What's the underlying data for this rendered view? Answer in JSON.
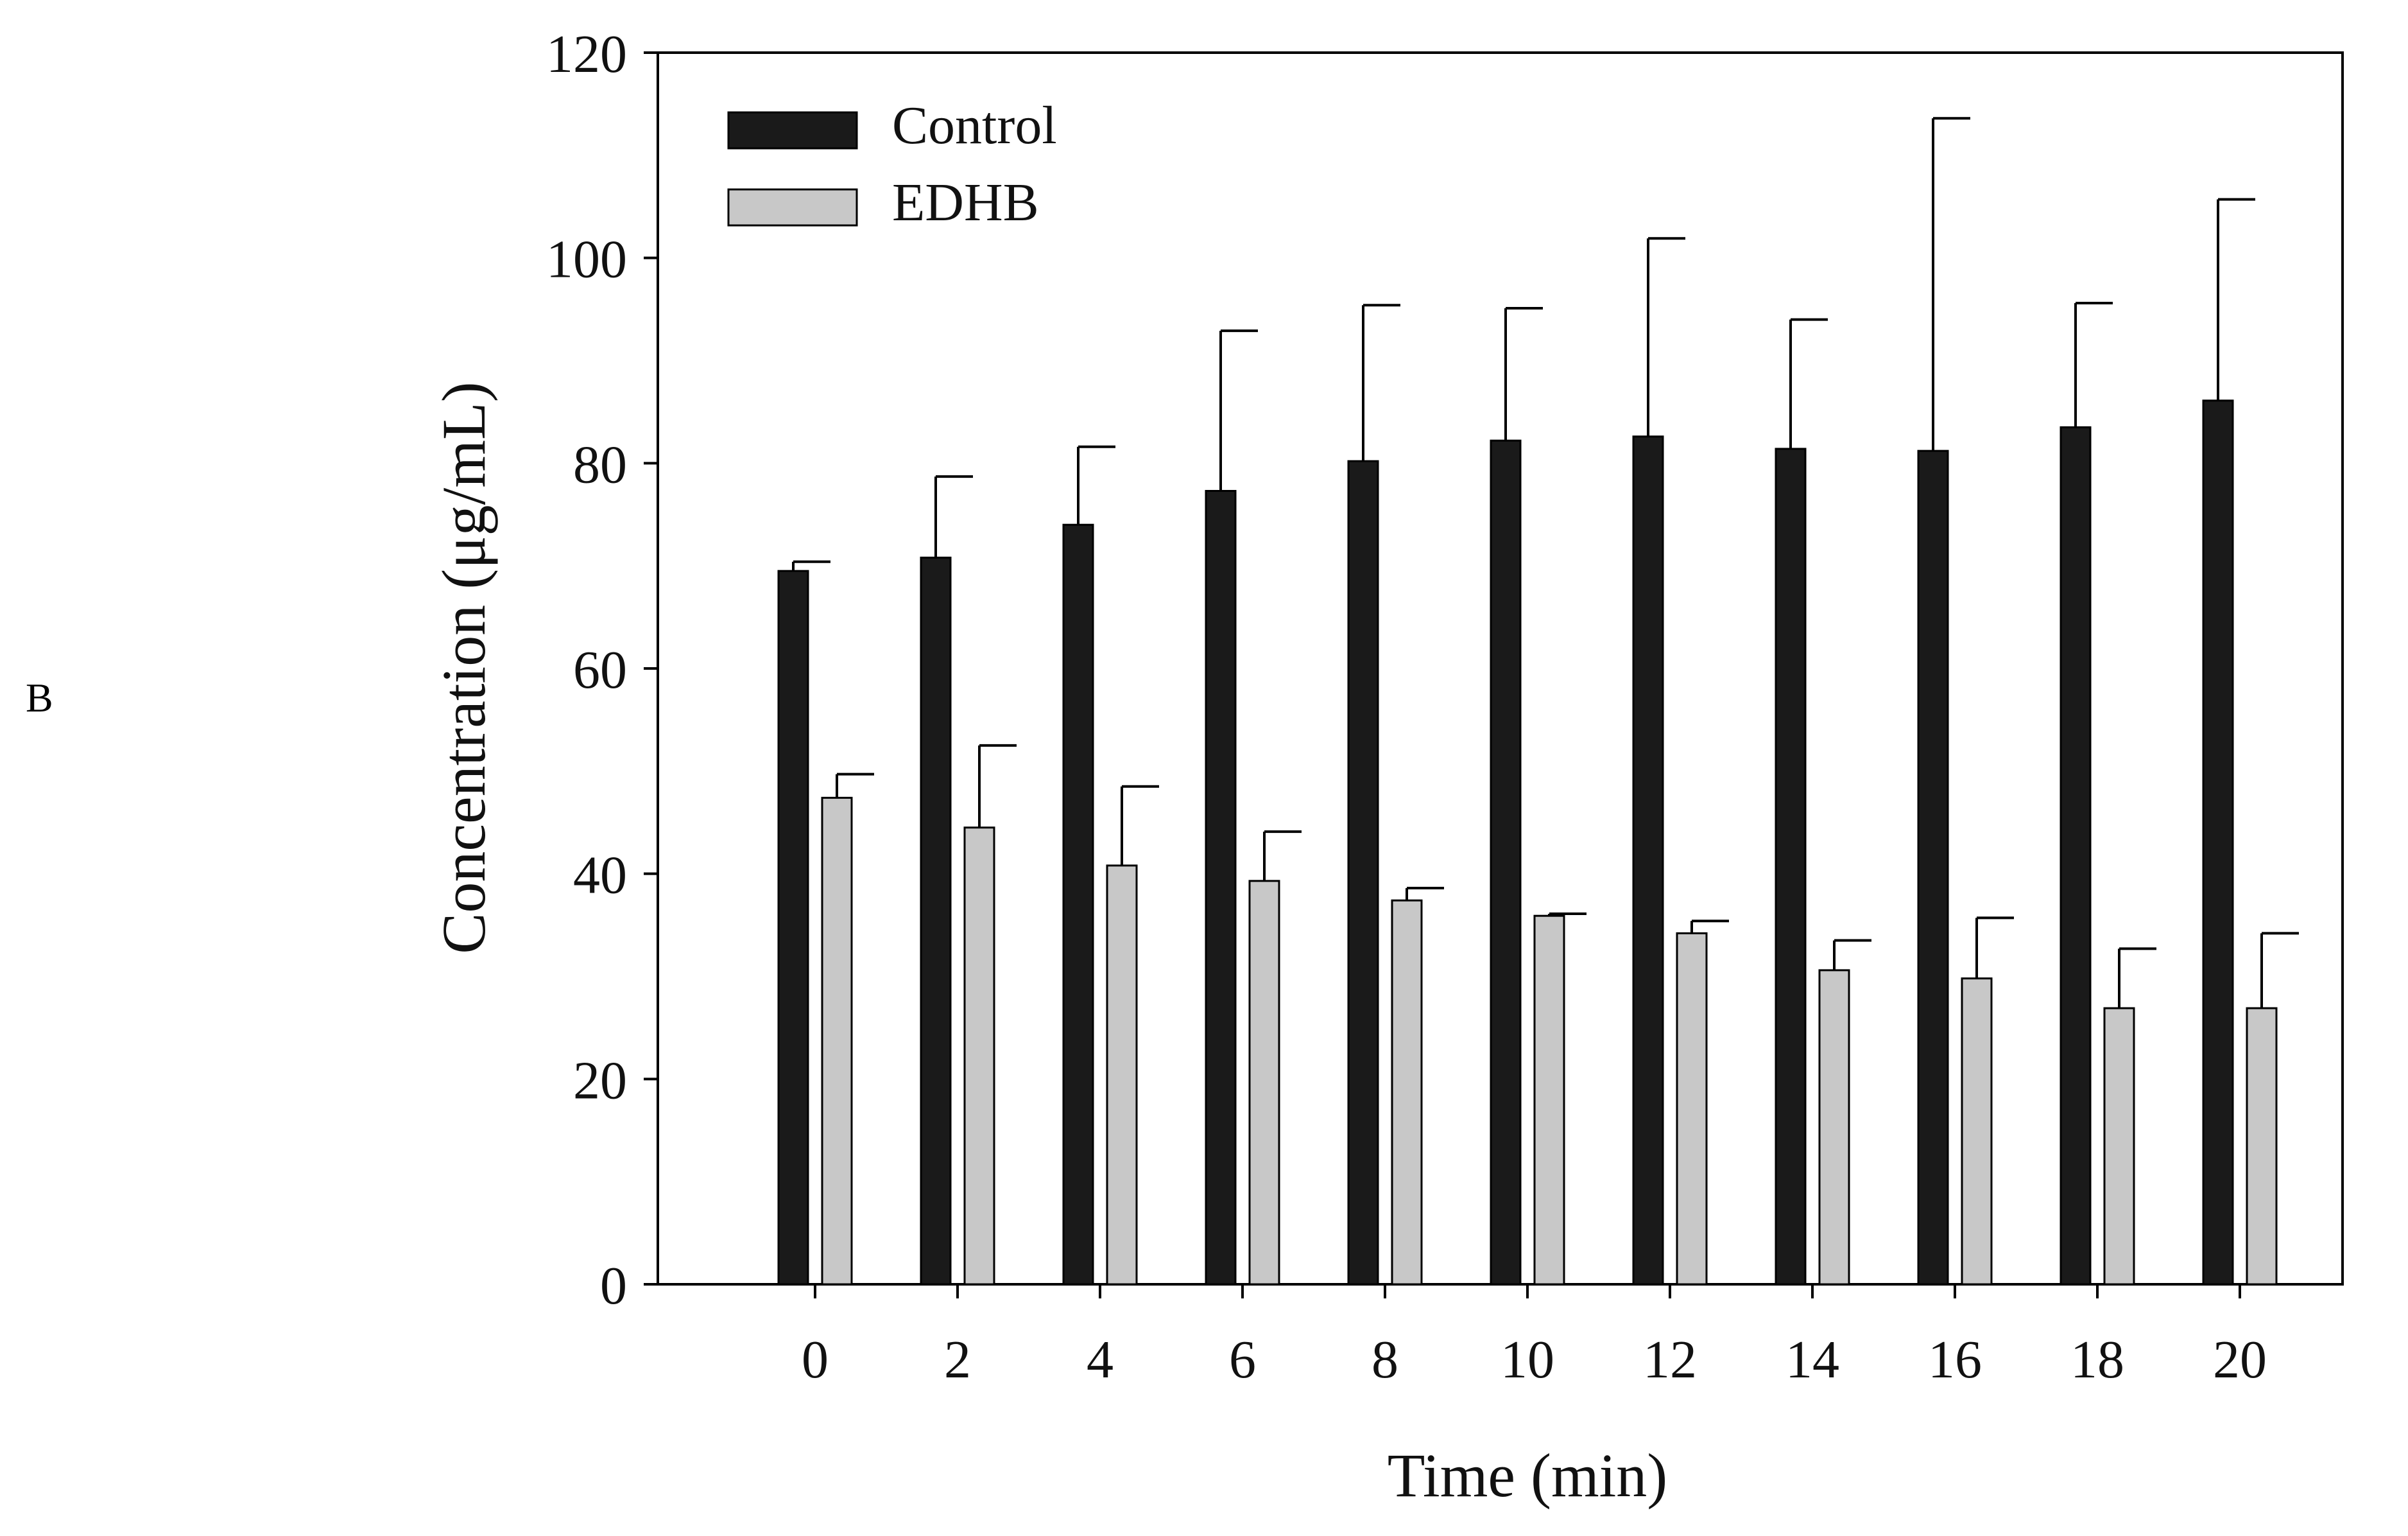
{
  "panel_label": "B",
  "chart_data": {
    "type": "bar",
    "title": "",
    "xlabel": "Time (min)",
    "ylabel": "Concentration (μg/mL)",
    "ylim": [
      0,
      120
    ],
    "yticks": [
      0,
      20,
      40,
      60,
      80,
      100,
      120
    ],
    "categories": [
      "0",
      "2",
      "4",
      "6",
      "8",
      "10",
      "12",
      "14",
      "16",
      "18",
      "20"
    ],
    "series": [
      {
        "name": "Control",
        "color": "#1a1a1a",
        "values": [
          69.5,
          70.8,
          74.0,
          77.3,
          80.2,
          82.2,
          82.6,
          81.4,
          81.2,
          83.5,
          86.1
        ],
        "errors": [
          0.9,
          7.9,
          7.6,
          15.6,
          15.2,
          12.9,
          19.3,
          12.6,
          32.4,
          12.1,
          19.6
        ]
      },
      {
        "name": "EDHB",
        "color": "#c8c8c8",
        "values": [
          47.4,
          44.5,
          40.8,
          39.3,
          37.4,
          35.9,
          34.2,
          30.6,
          29.8,
          26.9,
          26.9
        ],
        "errors": [
          2.3,
          8.0,
          7.7,
          4.8,
          1.2,
          0.2,
          1.2,
          2.9,
          5.9,
          5.8,
          7.3
        ]
      }
    ],
    "legend": "top-left"
  }
}
